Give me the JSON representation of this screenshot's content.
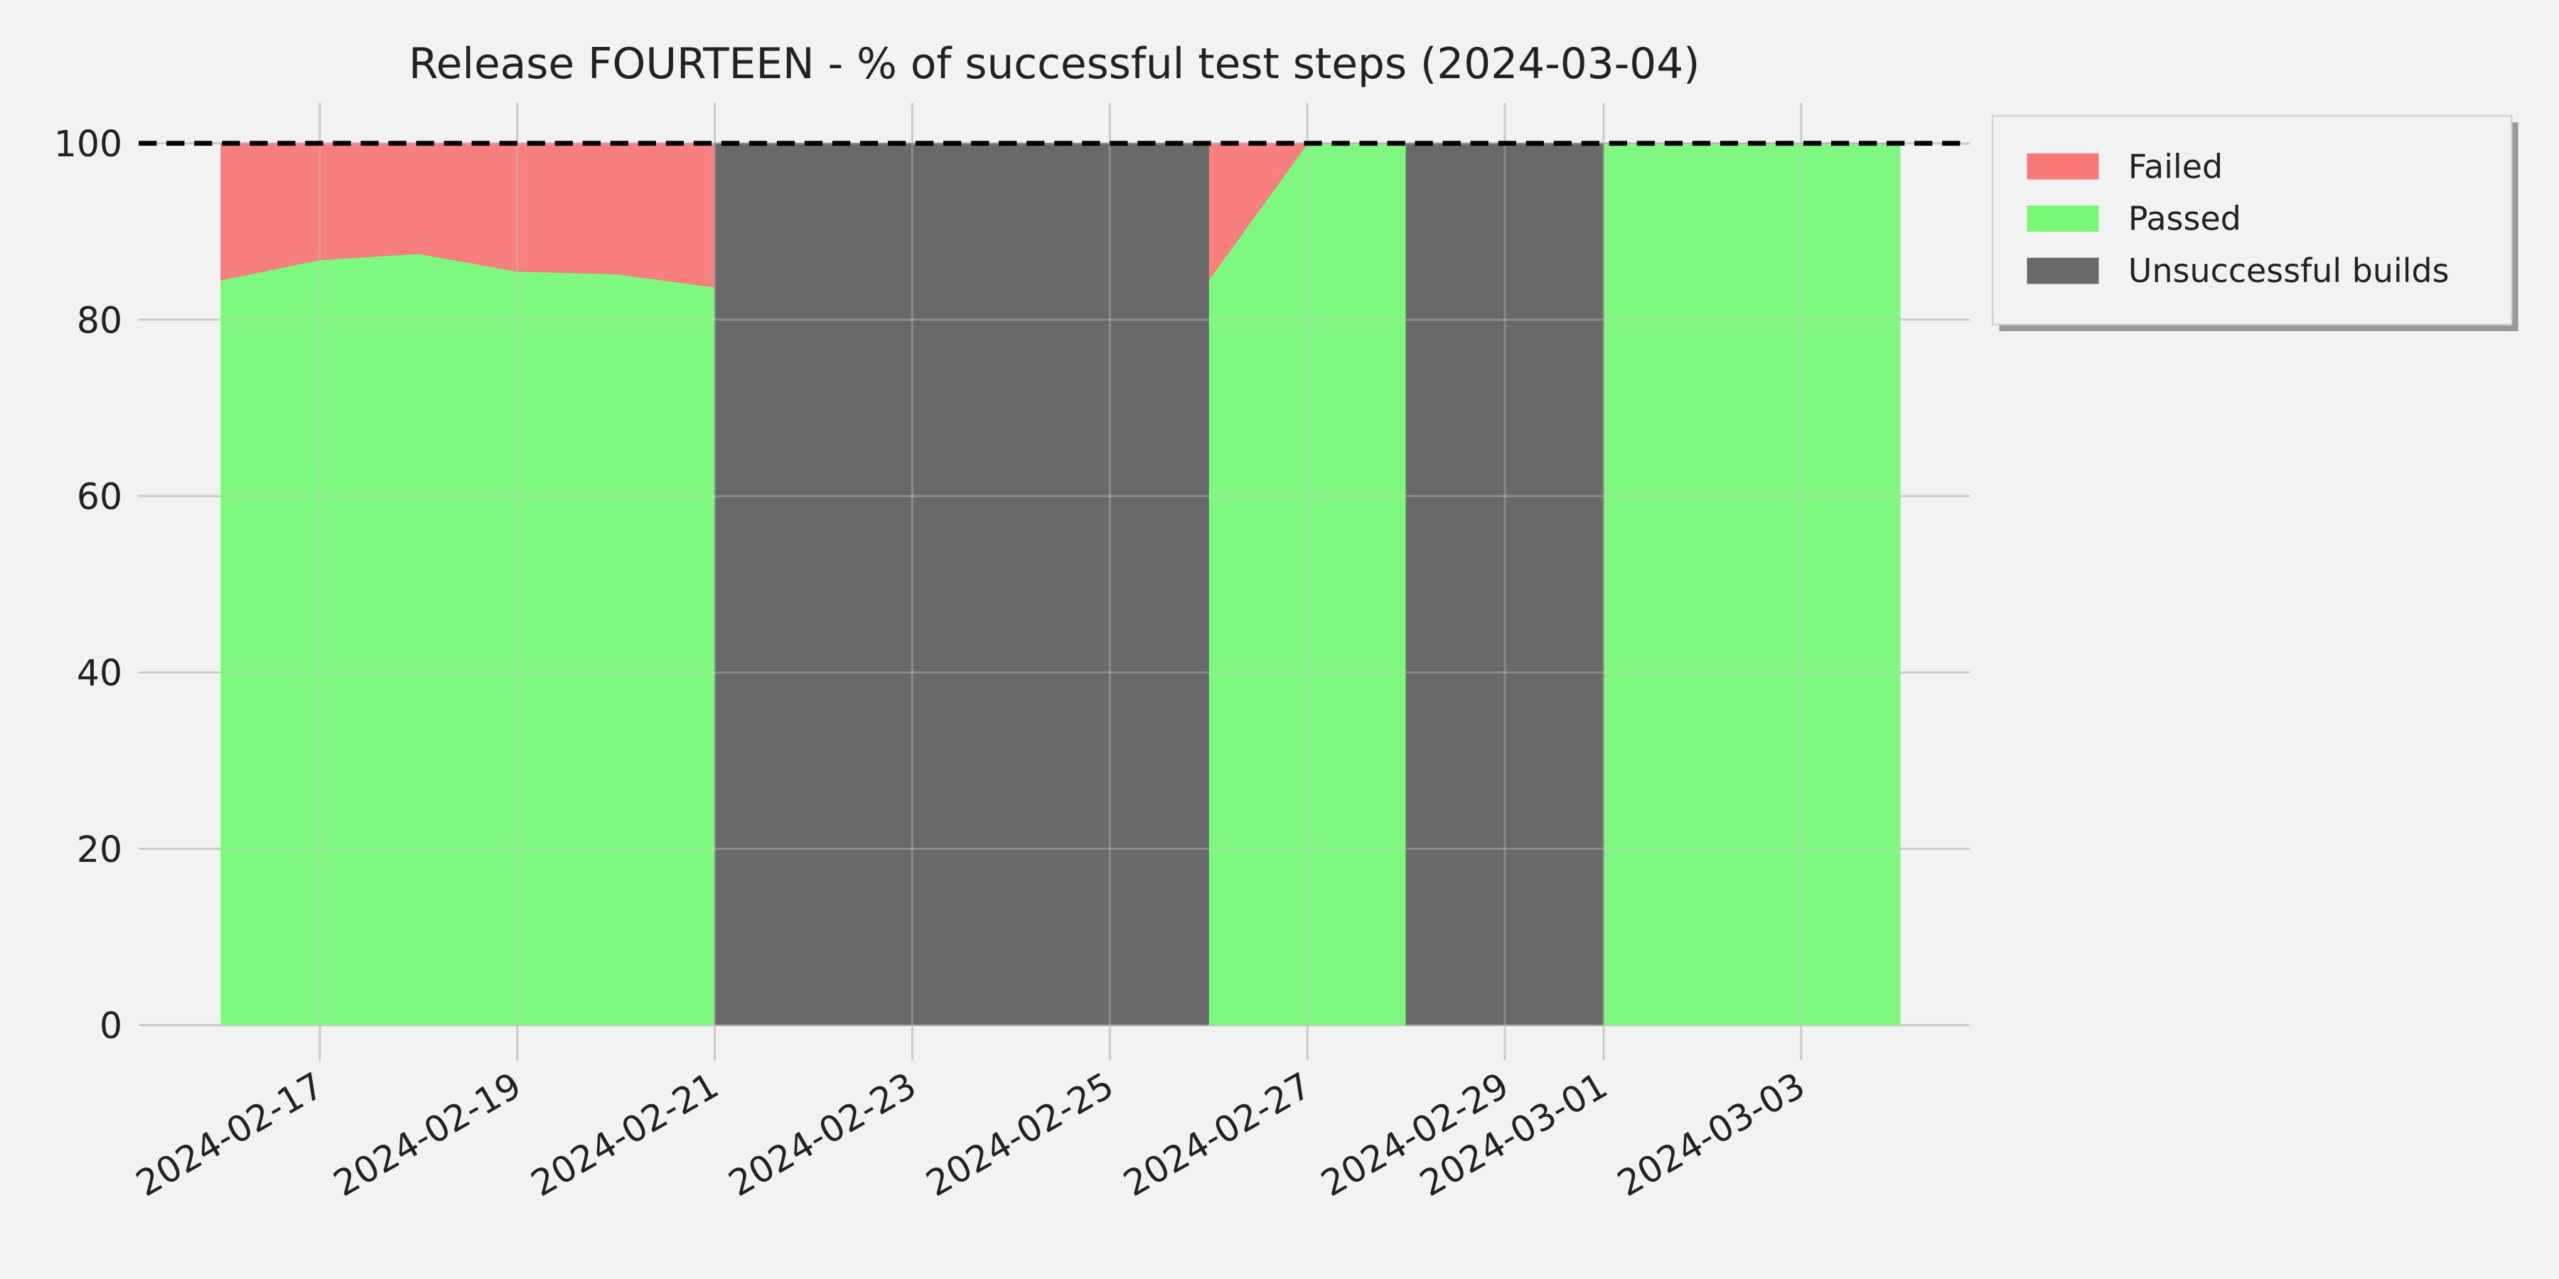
{
  "chart_data": {
    "type": "stacked_area",
    "title": "Release FOURTEEN - % of successful test steps (2024-03-04)",
    "x": [
      "2024-02-16",
      "2024-02-17",
      "2024-02-18",
      "2024-02-19",
      "2024-02-20",
      "2024-02-21",
      "2024-02-22",
      "2024-02-23",
      "2024-02-24",
      "2024-02-25",
      "2024-02-26",
      "2024-02-27",
      "2024-02-28",
      "2024-02-29",
      "2024-03-01",
      "2024-03-02",
      "2024-03-03",
      "2024-03-04"
    ],
    "series": [
      {
        "name": "Failed",
        "color": "#f87878",
        "stack": true,
        "values": [
          15.5,
          13.2,
          12.5,
          14.5,
          14.8,
          16.3,
          null,
          null,
          null,
          null,
          15.5,
          0,
          0,
          null,
          0,
          0,
          0,
          0
        ]
      },
      {
        "name": "Passed",
        "color": "#78f878",
        "stack": true,
        "values": [
          84.5,
          86.8,
          87.5,
          85.5,
          85.2,
          83.7,
          null,
          null,
          null,
          null,
          84.5,
          100,
          100,
          null,
          100,
          100,
          100,
          100
        ]
      },
      {
        "name": "Unsuccessful builds",
        "color": "#696969",
        "stack": false,
        "values": [
          null,
          null,
          null,
          null,
          null,
          100,
          100,
          100,
          100,
          100,
          100,
          null,
          100,
          100,
          100,
          null,
          null,
          null
        ]
      }
    ],
    "xlim": [
      "2024-02-15T04:00Z",
      "2024-03-04T17:00Z"
    ],
    "xticks": [
      "2024-02-17",
      "2024-02-19",
      "2024-02-21",
      "2024-02-23",
      "2024-02-25",
      "2024-02-27",
      "2024-02-29",
      "2024-03-01",
      "2024-03-03"
    ],
    "ylim": [
      -4,
      104.6
    ],
    "yticks": [
      0,
      20,
      40,
      60,
      80,
      100
    ],
    "reference_line": 100,
    "grid": true,
    "legend": "outside upper right"
  }
}
